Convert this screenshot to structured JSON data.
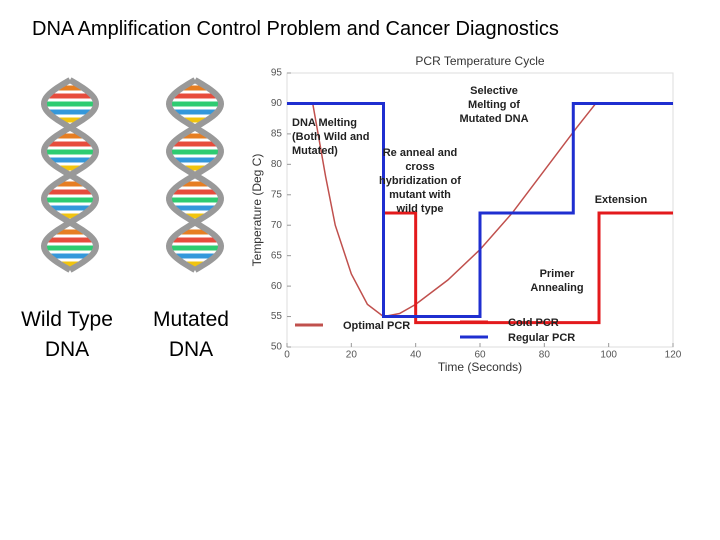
{
  "slide_title": "DNA Amplification Control Problem and Cancer Diagnostics",
  "dna_labels": [
    "Wild Type DNA",
    "Mutated DNA"
  ],
  "chart_data": {
    "type": "line",
    "title": "PCR Temperature Cycle",
    "x_label": "Time (Seconds)",
    "y_label": "Temperature (Deg C)",
    "xlim": [
      0,
      120
    ],
    "xticks": [
      0,
      20,
      40,
      60,
      80,
      100,
      120
    ],
    "ylim": [
      50,
      95
    ],
    "yticks": [
      50,
      55,
      60,
      65,
      70,
      75,
      80,
      85,
      90,
      95
    ],
    "legend": "bottom",
    "series": [
      {
        "name": "Optimal PCR",
        "color": "#c0504d",
        "x": [
          8,
          12,
          15,
          20,
          25,
          30,
          35,
          40,
          50,
          60,
          70,
          80,
          90,
          96
        ],
        "values": [
          90,
          78,
          70,
          62,
          57,
          55,
          55.5,
          57,
          61,
          66,
          72,
          79,
          86,
          90
        ]
      },
      {
        "name": "Cold PCR",
        "color": "#e31a1c",
        "x": [
          0,
          30,
          30,
          40,
          40,
          97,
          97,
          120
        ],
        "values": [
          90,
          90,
          72,
          72,
          54,
          54,
          72,
          72
        ]
      },
      {
        "name": "Regular PCR",
        "color": "#1f2fd0",
        "x": [
          0,
          30,
          30,
          60,
          60,
          89,
          89,
          120
        ],
        "values": [
          90,
          90,
          55,
          55,
          72,
          72,
          90,
          90
        ]
      }
    ],
    "annotations": [
      "DNA Melting (Both Wild and Mutated)",
      "Re anneal and cross hybridization of mutant with wild type",
      "Selective Melting of Mutated DNA",
      "Extension",
      "Primer Annealing"
    ]
  }
}
